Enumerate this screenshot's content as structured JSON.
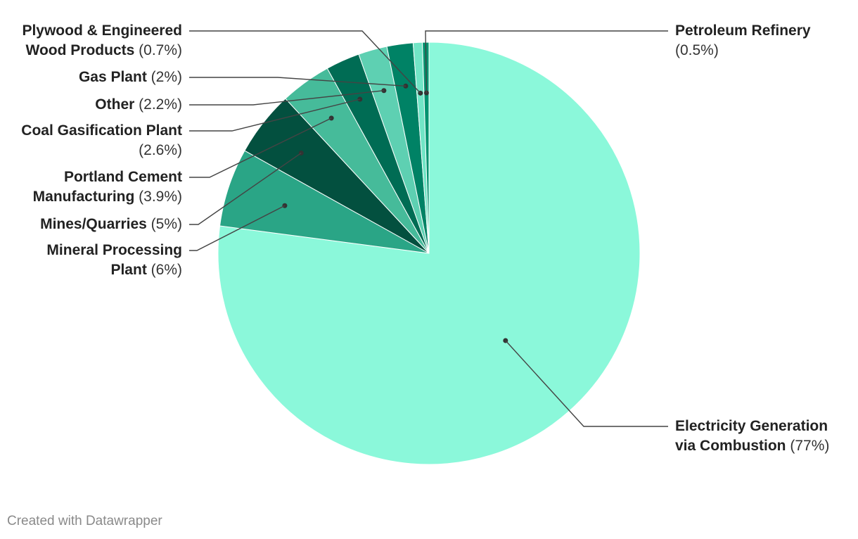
{
  "chart_data": {
    "type": "pie",
    "title": "",
    "slices": [
      {
        "name": "Electricity Generation via Combustion",
        "value": 77,
        "label": "(77%)",
        "color": "#8bf8da"
      },
      {
        "name": "Mineral Processing Plant",
        "value": 6,
        "label": "(6%)",
        "color": "#2aa586"
      },
      {
        "name": "Mines/Quarries",
        "value": 5,
        "label": "(5%)",
        "color": "#03503f"
      },
      {
        "name": "Portland Cement Manufacturing",
        "value": 3.9,
        "label": "(3.9%)",
        "color": "#46bb9a"
      },
      {
        "name": "Coal Gasification Plant",
        "value": 2.6,
        "label": "(2.6%)",
        "color": "#006c54"
      },
      {
        "name": "Other",
        "value": 2.2,
        "label": "(2.2%)",
        "color": "#5ed0b2"
      },
      {
        "name": "Gas Plant",
        "value": 2,
        "label": "(2%)",
        "color": "#008265"
      },
      {
        "name": "Plywood & Engineered Wood Products",
        "value": 0.7,
        "label": "(0.7%)",
        "color": "#72e5c6"
      },
      {
        "name": "Petroleum Refinery",
        "value": 0.5,
        "label": "(0.5%)",
        "color": "#00936f"
      }
    ]
  },
  "footer": {
    "credit": "Created with Datawrapper"
  }
}
